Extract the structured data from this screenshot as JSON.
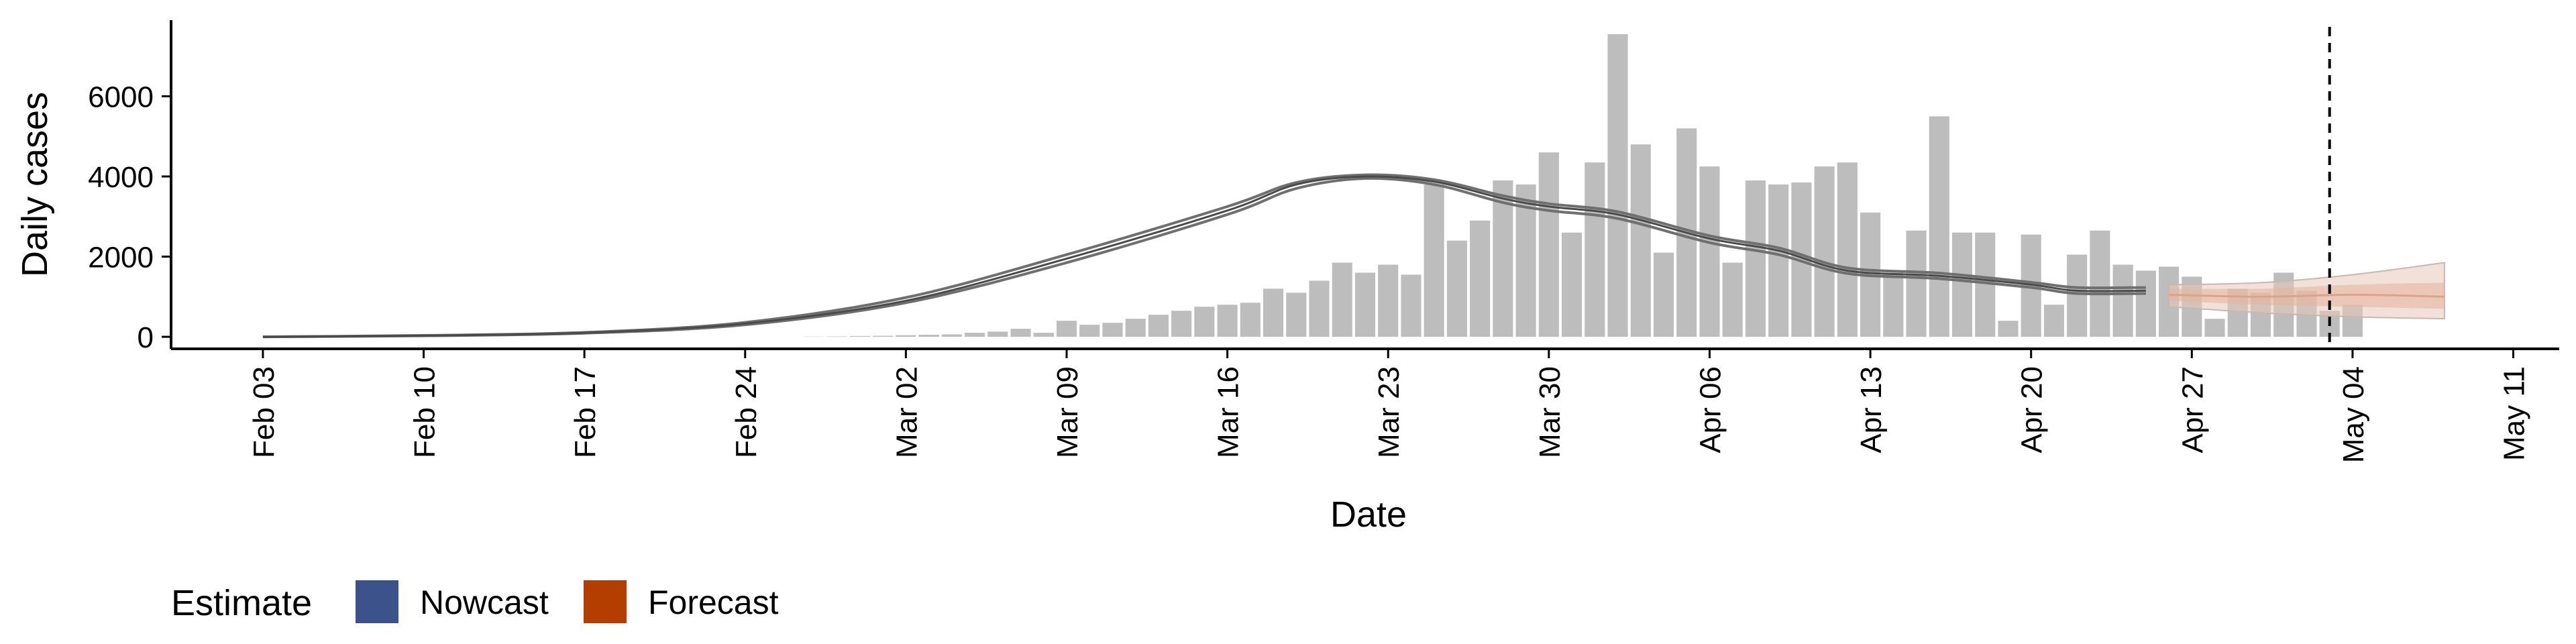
{
  "chart_data": {
    "type": "bar",
    "xlabel": "Date",
    "ylabel": "Daily cases",
    "xlim": [
      "2020-01-30",
      "2020-05-13"
    ],
    "ylim": [
      -300,
      7900
    ],
    "y_ticks": [
      0,
      2000,
      4000,
      6000
    ],
    "x_ticks": [
      "2020-02-03",
      "2020-02-10",
      "2020-02-17",
      "2020-02-24",
      "2020-03-02",
      "2020-03-09",
      "2020-03-16",
      "2020-03-23",
      "2020-03-30",
      "2020-04-06",
      "2020-04-13",
      "2020-04-20",
      "2020-04-27",
      "2020-05-04",
      "2020-05-11"
    ],
    "x_tick_labels": [
      "Feb 03",
      "Feb 10",
      "Feb 17",
      "Feb 24",
      "Mar 02",
      "Mar 09",
      "Mar 16",
      "Mar 23",
      "Mar 30",
      "Apr 06",
      "Apr 13",
      "Apr 20",
      "Apr 27",
      "May 04",
      "May 11"
    ],
    "grid": false,
    "legend_position": "bottom-left",
    "reference_line_date": "2020-05-03",
    "bars": {
      "start_date": "2020-02-27",
      "values": [
        5,
        10,
        20,
        25,
        40,
        50,
        60,
        100,
        130,
        200,
        100,
        400,
        300,
        350,
        450,
        550,
        650,
        750,
        800,
        850,
        1200,
        1100,
        1400,
        1850,
        1600,
        1800,
        1550,
        3800,
        2400,
        2900,
        3900,
        3800,
        4600,
        2600,
        4350,
        7550,
        4800,
        2100,
        5200,
        4250,
        1850,
        3900,
        3800,
        3850,
        4250,
        4350,
        3100,
        1600,
        2650,
        5500,
        2600,
        2600,
        400,
        2550,
        800,
        2050,
        2650,
        1800,
        1650,
        1750,
        1500,
        450,
        1200,
        1100,
        1600,
        1150,
        650,
        800
      ]
    },
    "series": [
      {
        "name": "Nowcast",
        "color": "#3b528b",
        "x": [
          "2020-02-03",
          "2020-02-10",
          "2020-02-17",
          "2020-02-24",
          "2020-03-02",
          "2020-03-09",
          "2020-03-16",
          "2020-03-19",
          "2020-03-22",
          "2020-03-25",
          "2020-03-28",
          "2020-03-30",
          "2020-04-02",
          "2020-04-06",
          "2020-04-09",
          "2020-04-12",
          "2020-04-16",
          "2020-04-20",
          "2020-04-22",
          "2020-04-25"
        ],
        "values": [
          0,
          30,
          100,
          330,
          900,
          1950,
          3150,
          3800,
          4000,
          3870,
          3450,
          3250,
          3050,
          2450,
          2150,
          1650,
          1520,
          1300,
          1150,
          1150
        ],
        "lower": [
          0,
          25,
          90,
          300,
          850,
          1850,
          3050,
          3700,
          3950,
          3800,
          3350,
          3150,
          2950,
          2350,
          2050,
          1580,
          1450,
          1230,
          1080,
          1080
        ],
        "upper": [
          0,
          35,
          110,
          360,
          980,
          2050,
          3250,
          3850,
          4040,
          3920,
          3520,
          3320,
          3120,
          2520,
          2220,
          1720,
          1590,
          1360,
          1230,
          1230
        ]
      },
      {
        "name": "Forecast",
        "color": "#b33e00",
        "x": [
          "2020-04-26",
          "2020-04-30",
          "2020-05-04",
          "2020-05-08"
        ],
        "values": [
          1050,
          1000,
          1050,
          1000
        ],
        "lower": [
          750,
          600,
          500,
          450
        ],
        "upper": [
          1300,
          1350,
          1550,
          1850
        ],
        "inner_lower": [
          900,
          800,
          750,
          700
        ],
        "inner_upper": [
          1200,
          1200,
          1300,
          1350
        ]
      }
    ],
    "legend": {
      "title": "Estimate",
      "items": [
        {
          "label": "Nowcast",
          "color": "#3b528b"
        },
        {
          "label": "Forecast",
          "color": "#b33e00"
        }
      ]
    }
  }
}
